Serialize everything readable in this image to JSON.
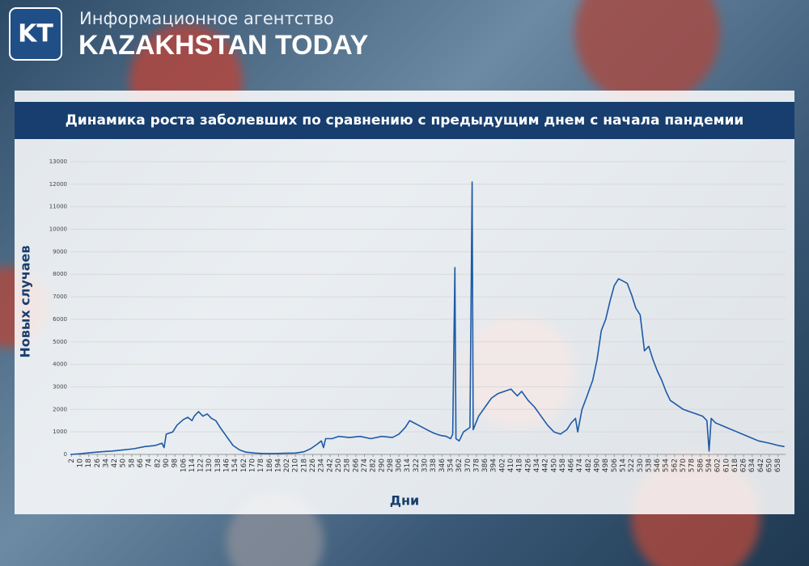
{
  "header": {
    "logo": "KT",
    "agency": "Информационное агентство",
    "name": "KAZAKHSTAN TODAY"
  },
  "chart_data": {
    "type": "line",
    "title": "Динамика роста заболевших по сравнению с предыдущим днем с начала пандемии",
    "x_label": "Дни",
    "y_label": "Новых случаев",
    "x": [
      1,
      10,
      20,
      30,
      40,
      50,
      60,
      70,
      80,
      86,
      88,
      90,
      96,
      100,
      106,
      110,
      114,
      116,
      120,
      124,
      128,
      132,
      136,
      140,
      146,
      152,
      158,
      164,
      172,
      180,
      190,
      200,
      210,
      218,
      224,
      230,
      234,
      236,
      238,
      244,
      250,
      260,
      270,
      280,
      290,
      300,
      306,
      312,
      316,
      320,
      326,
      332,
      338,
      344,
      350,
      354,
      356,
      358,
      359,
      362,
      366,
      372,
      374,
      375,
      380,
      386,
      392,
      398,
      404,
      410,
      416,
      420,
      426,
      432,
      438,
      444,
      450,
      456,
      462,
      466,
      470,
      472,
      476,
      480,
      486,
      490,
      494,
      498,
      502,
      506,
      510,
      514,
      518,
      522,
      526,
      530,
      534,
      538,
      542,
      546,
      550,
      554,
      558,
      564,
      570,
      576,
      582,
      588,
      592,
      594,
      596,
      600,
      610,
      620,
      630,
      640,
      650,
      658,
      664
    ],
    "values": [
      0,
      30,
      80,
      120,
      150,
      200,
      250,
      350,
      400,
      500,
      300,
      900,
      1000,
      1300,
      1550,
      1650,
      1500,
      1700,
      1900,
      1700,
      1800,
      1600,
      1500,
      1200,
      800,
      400,
      200,
      100,
      60,
      40,
      40,
      50,
      60,
      120,
      250,
      450,
      600,
      300,
      700,
      700,
      800,
      750,
      800,
      700,
      800,
      750,
      900,
      1200,
      1500,
      1400,
      1250,
      1100,
      950,
      850,
      800,
      700,
      900,
      8300,
      700,
      600,
      1000,
      1200,
      12100,
      1100,
      1700,
      2100,
      2500,
      2700,
      2800,
      2900,
      2600,
      2800,
      2400,
      2100,
      1700,
      1300,
      1000,
      900,
      1100,
      1400,
      1600,
      1000,
      2000,
      2500,
      3300,
      4200,
      5500,
      6000,
      6800,
      7500,
      7800,
      7700,
      7600,
      7100,
      6500,
      6200,
      4600,
      4800,
      4200,
      3700,
      3300,
      2800,
      2400,
      2200,
      2000,
      1900,
      1800,
      1700,
      1500,
      150,
      1600,
      1400,
      1200,
      1000,
      800,
      600,
      500,
      400,
      350
    ],
    "color": "#1d5aa6",
    "grid": true,
    "xlim": [
      1,
      665
    ],
    "ylim": [
      0,
      13000
    ],
    "yticks": [
      0,
      1000,
      2000,
      3000,
      4000,
      5000,
      6000,
      7000,
      8000,
      9000,
      10000,
      11000,
      12000,
      13000
    ],
    "xticks": [
      2,
      10,
      18,
      26,
      34,
      42,
      50,
      58,
      66,
      74,
      82,
      90,
      98,
      106,
      114,
      122,
      130,
      138,
      146,
      154,
      162,
      170,
      178,
      186,
      194,
      202,
      210,
      218,
      226,
      234,
      242,
      250,
      258,
      266,
      274,
      282,
      290,
      298,
      306,
      314,
      322,
      330,
      338,
      346,
      354,
      362,
      370,
      378,
      386,
      394,
      402,
      410,
      418,
      426,
      434,
      442,
      450,
      458,
      466,
      474,
      482,
      490,
      498,
      506,
      514,
      522,
      530,
      538,
      546,
      554,
      562,
      570,
      578,
      586,
      594,
      602,
      610,
      618,
      626,
      634,
      642,
      650,
      658
    ]
  }
}
